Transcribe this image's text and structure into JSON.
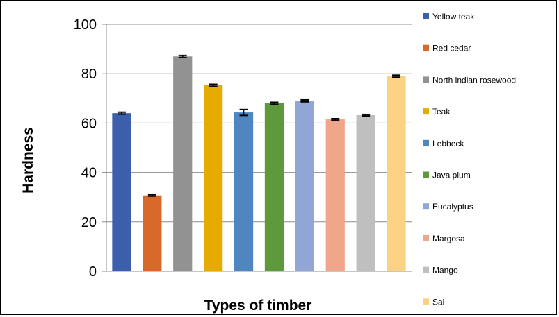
{
  "chart_data": {
    "type": "bar",
    "title": "",
    "xlabel": "Types of timber",
    "ylabel": "Hardness",
    "ylim": [
      0,
      100
    ],
    "yticks": [
      0,
      20,
      40,
      60,
      80,
      100
    ],
    "grid": true,
    "legend_position": "right",
    "series": [
      {
        "name": "Yellow teak",
        "value": 64.0,
        "error": 0.4,
        "color": "#3c5fac"
      },
      {
        "name": "Red cedar",
        "value": 30.7,
        "error": 0.3,
        "color": "#d9692a"
      },
      {
        "name": "North indian rosewood",
        "value": 87.0,
        "error": 0.4,
        "color": "#929292"
      },
      {
        "name": "Teak",
        "value": 75.3,
        "error": 0.4,
        "color": "#e6aa00"
      },
      {
        "name": "Lebbeck",
        "value": 64.3,
        "error": 1.2,
        "color": "#4f86bf"
      },
      {
        "name": "Java plum",
        "value": 68.0,
        "error": 0.4,
        "color": "#5e9a3c"
      },
      {
        "name": "Eucalyptus",
        "value": 69.0,
        "error": 0.4,
        "color": "#91a6d7"
      },
      {
        "name": "Margosa",
        "value": 61.5,
        "error": 0.3,
        "color": "#f0a68a"
      },
      {
        "name": "Mango",
        "value": 63.2,
        "error": 0.3,
        "color": "#bfbfbf"
      },
      {
        "name": "Sal",
        "value": 79.0,
        "error": 0.4,
        "color": "#fbd283"
      }
    ]
  }
}
